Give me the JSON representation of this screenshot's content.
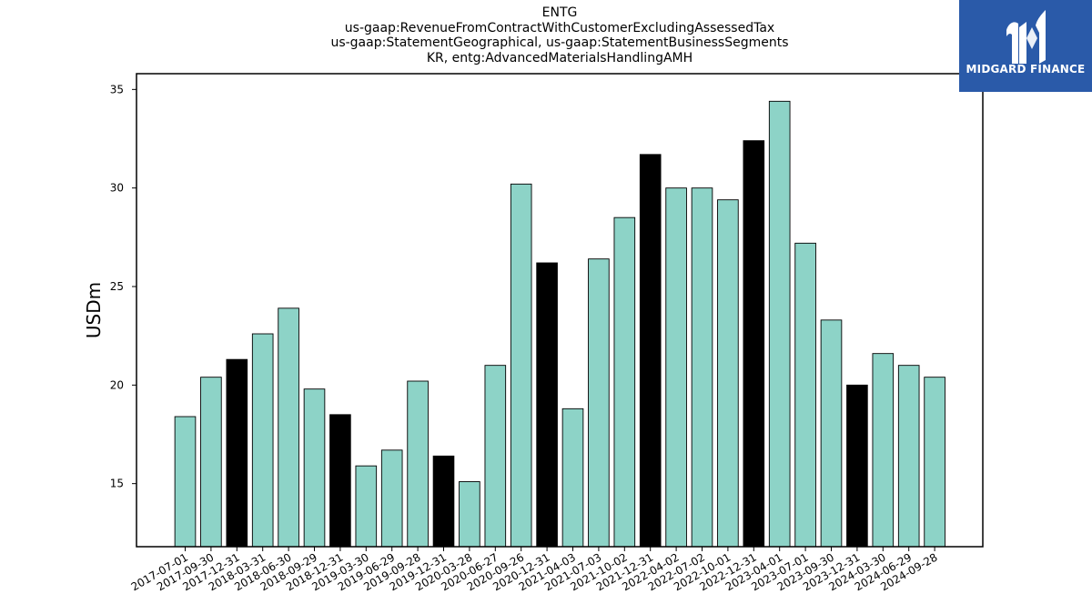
{
  "chart_data": {
    "type": "bar",
    "title_lines": [
      "ENTG",
      "us-gaap:RevenueFromContractWithCustomerExcludingAssessedTax",
      "us-gaap:StatementGeographical, us-gaap:StatementBusinessSegments",
      "KR, entg:AdvancedMaterialsHandlingAMH"
    ],
    "ylabel": "USDm",
    "xlabel": "",
    "ylim": [
      11.8,
      35.8
    ],
    "yticks": [
      15,
      20,
      25,
      30,
      35
    ],
    "grid": false,
    "categories": [
      "2017-07-01",
      "2017-09-30",
      "2017-12-31",
      "2018-03-31",
      "2018-06-30",
      "2018-09-29",
      "2018-12-31",
      "2019-03-30",
      "2019-06-29",
      "2019-09-28",
      "2019-12-31",
      "2020-03-28",
      "2020-06-27",
      "2020-09-26",
      "2020-12-31",
      "2021-04-03",
      "2021-07-03",
      "2021-10-02",
      "2021-12-31",
      "2022-04-02",
      "2022-07-02",
      "2022-10-01",
      "2022-12-31",
      "2023-04-01",
      "2023-07-01",
      "2023-09-30",
      "2023-12-31",
      "2024-03-30",
      "2024-06-29",
      "2024-09-28"
    ],
    "values": [
      18.4,
      20.4,
      21.3,
      22.6,
      23.9,
      19.8,
      18.5,
      15.9,
      16.7,
      20.2,
      16.4,
      15.1,
      21.0,
      30.2,
      26.2,
      18.8,
      26.4,
      28.5,
      31.7,
      30.0,
      30.0,
      29.4,
      32.4,
      34.4,
      27.2,
      23.3,
      20.0,
      21.6,
      21.0,
      20.4
    ],
    "highlight": [
      false,
      false,
      true,
      false,
      false,
      false,
      true,
      false,
      false,
      false,
      true,
      false,
      false,
      false,
      true,
      false,
      false,
      false,
      true,
      false,
      false,
      false,
      true,
      false,
      false,
      false,
      true,
      false,
      false,
      false
    ],
    "colors": {
      "bar": "#8dd3c7",
      "highlight": "#000000",
      "edge": "#000000"
    }
  },
  "logo": {
    "text": "MIDGARD FINANCE",
    "background": "#2a5aa9"
  }
}
